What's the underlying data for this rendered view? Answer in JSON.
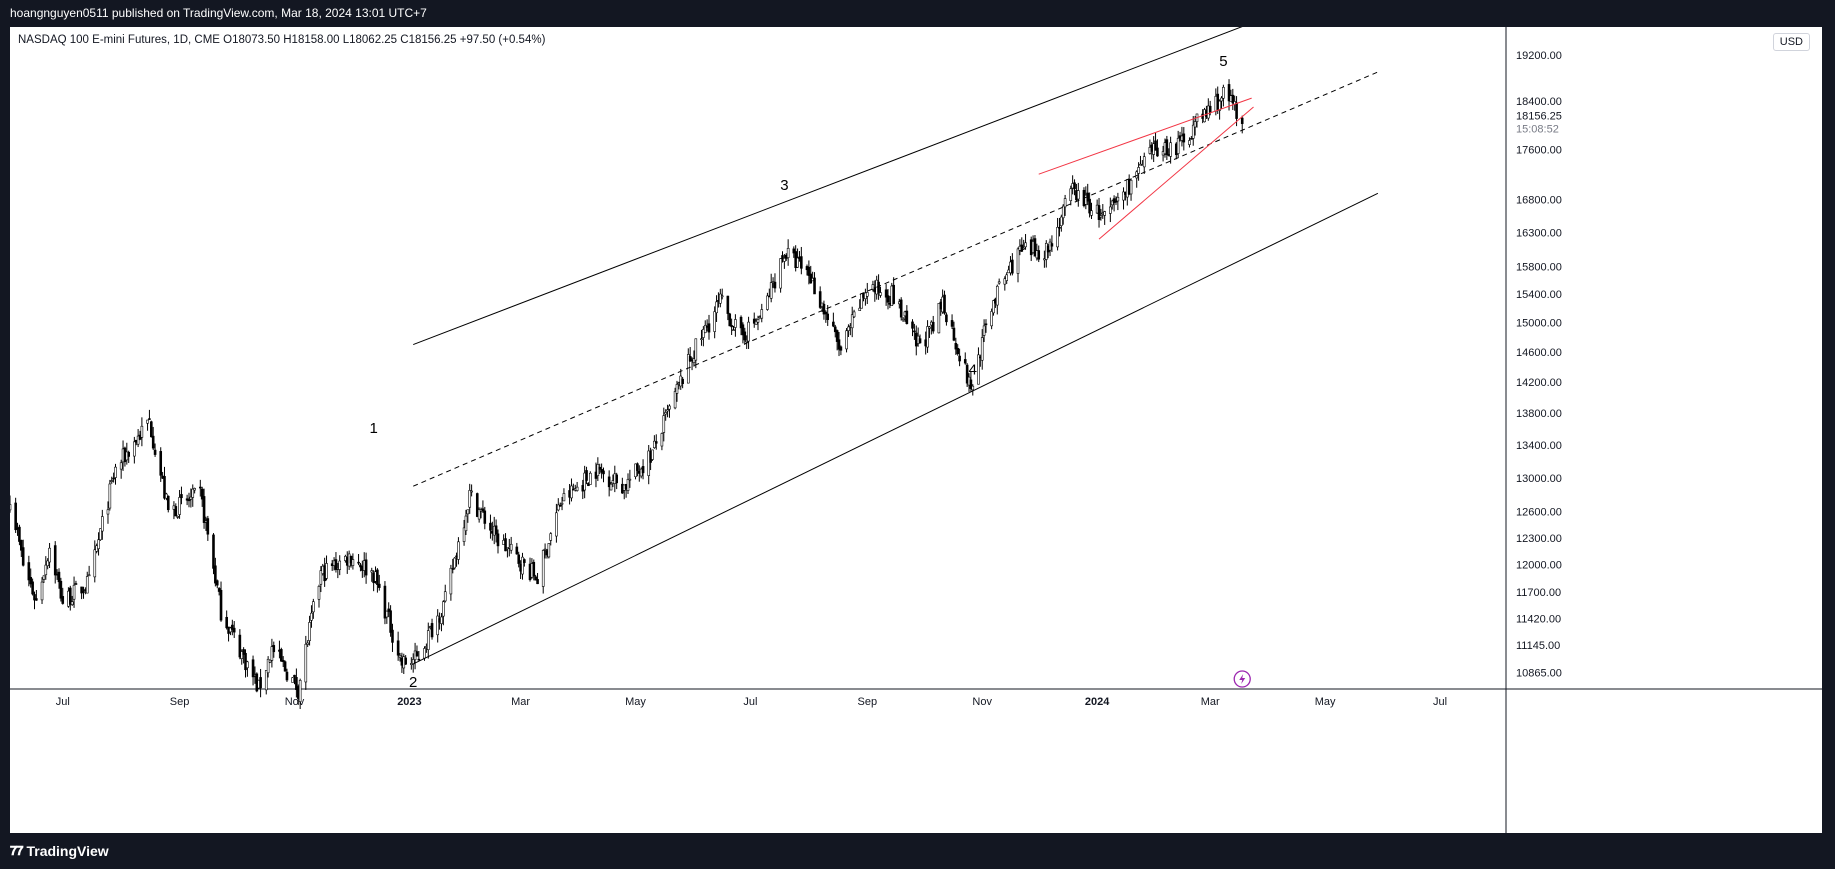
{
  "header": {
    "publish_info": "hoangnguyen0511 published on TradingView.com, Mar 18, 2024 13:01 UTC+7"
  },
  "legend": {
    "text": "NASDAQ 100 E-mini Futures, 1D, CME  O18073.50  H18158.00  L18062.25  C18156.25  +97.50 (+0.54%)"
  },
  "price_scale": {
    "currency": "USD",
    "last_price": "18156.25",
    "countdown": "15:08:52"
  },
  "footer": {
    "brand": "TradingView"
  },
  "colors": {
    "background": "#ffffff",
    "frame": "#131722",
    "candles": "#000000",
    "wedge": "#f23645",
    "lines": "#000000",
    "event_icon": "#9c27b0"
  },
  "chart_data": {
    "type": "candlestick",
    "symbol": "NASDAQ 100 E-mini Futures",
    "interval": "1D",
    "ohlc_last": {
      "open": 18073.5,
      "high": 18158.0,
      "low": 18062.25,
      "close": 18156.25,
      "change": 97.5,
      "change_pct": 0.54
    },
    "y_scale": "log",
    "ylim": [
      10700,
      19700
    ],
    "xlim": [
      "2022-06-03",
      "2024-08-05"
    ],
    "y_ticks": [
      "10865.00",
      "11145.00",
      "11420.00",
      "11700.00",
      "12000.00",
      "12300.00",
      "12600.00",
      "13000.00",
      "13400.00",
      "13800.00",
      "14200.00",
      "14600.00",
      "15000.00",
      "15400.00",
      "15800.00",
      "16300.00",
      "16800.00",
      "17600.00",
      "18400.00",
      "19200.00"
    ],
    "x_ticks": [
      {
        "date": "2022-07-01",
        "label": "Jul",
        "bold": false
      },
      {
        "date": "2022-09-01",
        "label": "Sep",
        "bold": false
      },
      {
        "date": "2022-11-01",
        "label": "Nov",
        "bold": false
      },
      {
        "date": "2023-01-01",
        "label": "2023",
        "bold": true
      },
      {
        "date": "2023-03-01",
        "label": "Mar",
        "bold": false
      },
      {
        "date": "2023-05-01",
        "label": "May",
        "bold": false
      },
      {
        "date": "2023-07-01",
        "label": "Jul",
        "bold": false
      },
      {
        "date": "2023-09-01",
        "label": "Sep",
        "bold": false
      },
      {
        "date": "2023-11-01",
        "label": "Nov",
        "bold": false
      },
      {
        "date": "2024-01-01",
        "label": "2024",
        "bold": true
      },
      {
        "date": "2024-03-01",
        "label": "Mar",
        "bold": false
      },
      {
        "date": "2024-05-01",
        "label": "May",
        "bold": false
      },
      {
        "date": "2024-07-01",
        "label": "Jul",
        "bold": false
      }
    ],
    "price_path": [
      [
        "2022-06-03",
        12800
      ],
      [
        "2022-06-10",
        12000
      ],
      [
        "2022-06-17",
        11600
      ],
      [
        "2022-06-24",
        12200
      ],
      [
        "2022-07-01",
        11600
      ],
      [
        "2022-07-15",
        11800
      ],
      [
        "2022-07-29",
        13100
      ],
      [
        "2022-08-16",
        13700
      ],
      [
        "2022-08-26",
        12600
      ],
      [
        "2022-09-12",
        12800
      ],
      [
        "2022-09-23",
        11500
      ],
      [
        "2022-10-13",
        10700
      ],
      [
        "2022-10-20",
        11100
      ],
      [
        "2022-11-03",
        10700
      ],
      [
        "2022-11-15",
        11900
      ],
      [
        "2022-12-01",
        12100
      ],
      [
        "2022-12-13",
        11900
      ],
      [
        "2022-12-28",
        10950
      ],
      [
        "2023-01-05",
        11000
      ],
      [
        "2023-01-20",
        11600
      ],
      [
        "2023-02-02",
        12800
      ],
      [
        "2023-02-16",
        12300
      ],
      [
        "2023-03-10",
        11850
      ],
      [
        "2023-03-22",
        12700
      ],
      [
        "2023-04-10",
        13100
      ],
      [
        "2023-04-25",
        12900
      ],
      [
        "2023-05-10",
        13300
      ],
      [
        "2023-05-30",
        14500
      ],
      [
        "2023-06-15",
        15300
      ],
      [
        "2023-06-26",
        14800
      ],
      [
        "2023-07-07",
        15100
      ],
      [
        "2023-07-19",
        16000
      ],
      [
        "2023-08-01",
        15700
      ],
      [
        "2023-08-18",
        14600
      ],
      [
        "2023-09-01",
        15500
      ],
      [
        "2023-09-14",
        15400
      ],
      [
        "2023-09-27",
        14700
      ],
      [
        "2023-10-06",
        14900
      ],
      [
        "2023-10-11",
        15300
      ],
      [
        "2023-10-26",
        14100
      ],
      [
        "2023-11-06",
        15250
      ],
      [
        "2023-11-20",
        16000
      ],
      [
        "2023-12-06",
        16050
      ],
      [
        "2023-12-19",
        16950
      ],
      [
        "2024-01-05",
        16500
      ],
      [
        "2024-01-17",
        17000
      ],
      [
        "2024-02-01",
        17600
      ],
      [
        "2024-02-13",
        17650
      ],
      [
        "2024-02-22",
        18000
      ],
      [
        "2024-03-08",
        18500
      ],
      [
        "2024-03-18",
        18156.25
      ]
    ],
    "trendlines": [
      {
        "style": "solid",
        "color": "#000000",
        "from": [
          "2023-01-03",
          14700
        ],
        "to": [
          "2024-03-25",
          19800
        ]
      },
      {
        "style": "solid",
        "color": "#000000",
        "from": [
          "2023-01-03",
          10950
        ],
        "to": [
          "2024-05-29",
          16900
        ]
      },
      {
        "style": "dashed",
        "color": "#000000",
        "from": [
          "2023-01-03",
          12900
        ],
        "to": [
          "2024-05-29",
          18900
        ]
      },
      {
        "style": "solid",
        "color": "#f23645",
        "from": [
          "2023-12-01",
          17200
        ],
        "to": [
          "2024-03-23",
          18450
        ]
      },
      {
        "style": "solid",
        "color": "#f23645",
        "from": [
          "2024-01-02",
          16200
        ],
        "to": [
          "2024-03-24",
          18300
        ]
      }
    ],
    "annotations": [
      {
        "text": "1",
        "date": "2022-12-13",
        "price": 13550
      },
      {
        "text": "2",
        "date": "2023-01-03",
        "price": 10720
      },
      {
        "text": "3",
        "date": "2023-07-19",
        "price": 16950
      },
      {
        "text": "4",
        "date": "2023-10-27",
        "price": 14300
      },
      {
        "text": "5",
        "date": "2024-03-08",
        "price": 19000
      }
    ]
  }
}
